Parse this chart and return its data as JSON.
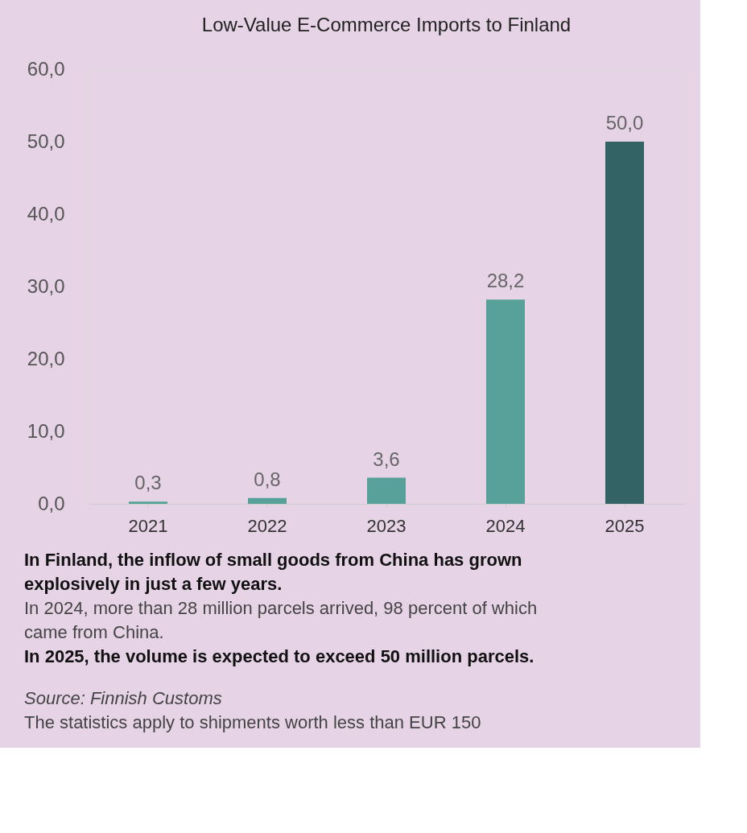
{
  "chart_data": {
    "type": "bar",
    "title": "Low-Value E-Commerce Imports to Finland",
    "categories": [
      "2021",
      "2022",
      "2023",
      "2024",
      "2025"
    ],
    "values": [
      0.3,
      0.8,
      3.6,
      28.2,
      50.0
    ],
    "colors": [
      "#57a19a",
      "#57a19a",
      "#57a19a",
      "#57a19a",
      "#336364"
    ],
    "value_labels": [
      "0,3",
      "0,8",
      "3,6",
      "28,2",
      "50,0"
    ],
    "ylim": [
      0,
      60
    ],
    "yticks": [
      {
        "value": 0,
        "label": "0,0"
      },
      {
        "value": 10,
        "label": "10,0"
      },
      {
        "value": 20,
        "label": "20,0"
      },
      {
        "value": 30,
        "label": "30,0"
      },
      {
        "value": 40,
        "label": "40,0"
      },
      {
        "value": 50,
        "label": "50,0"
      },
      {
        "value": 60,
        "label": "60,0"
      }
    ],
    "grid": false,
    "annotations": [
      "In Finland, the inflow of small goods from China has grown explosively in just a few years.",
      "In 2024, more than 28 million parcels arrived, 98 percent of which came from China.",
      "In 2025, the volume is expected to exceed 50 million parcels.",
      "Source: Finnish Customs",
      "The statistics apply to shipments worth less than EUR 150"
    ]
  }
}
